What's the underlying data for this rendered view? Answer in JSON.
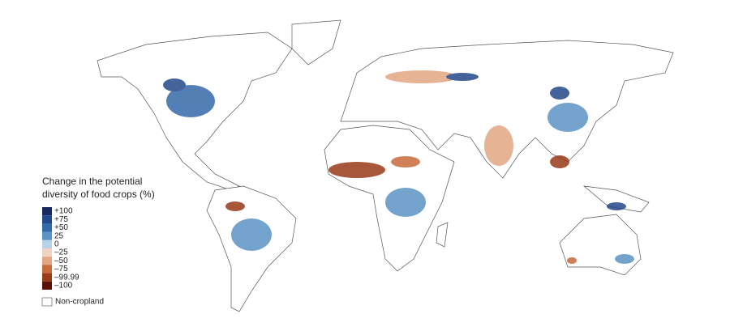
{
  "legend": {
    "title_lines": [
      "Change in the potential",
      "diversity of food crops (%)"
    ],
    "items": [
      {
        "label": "+100",
        "color": "#17295e"
      },
      {
        "label": "+75",
        "color": "#24488a"
      },
      {
        "label": "+50",
        "color": "#3469a8"
      },
      {
        "label": "25",
        "color": "#5c93c6"
      },
      {
        "label": "0",
        "color": "#b8d2e8"
      },
      {
        "label": "–25",
        "color": "#efd4c1"
      },
      {
        "label": "–50",
        "color": "#e2a682"
      },
      {
        "label": "–75",
        "color": "#c76a3c"
      },
      {
        "label": "–99.99",
        "color": "#9a3b18"
      },
      {
        "label": "–100",
        "color": "#5a1207"
      }
    ],
    "non_cropland": "Non-cropland"
  }
}
